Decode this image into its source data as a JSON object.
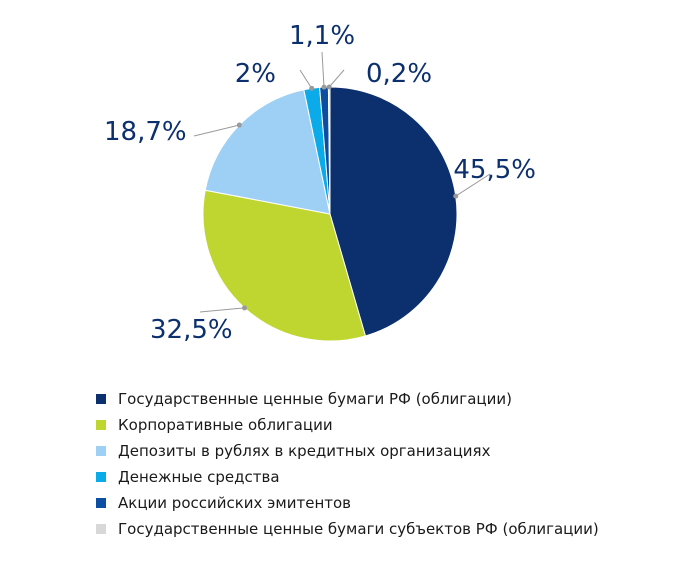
{
  "chart_data": {
    "type": "pie",
    "title": "",
    "slices": [
      {
        "name": "Государственные ценные бумаги РФ (облигации)",
        "value": 45.5,
        "label": "45,5%",
        "color": "#0c2f6e"
      },
      {
        "name": "Корпоративные облигации",
        "value": 32.5,
        "label": "32,5%",
        "color": "#bfd630"
      },
      {
        "name": "Депозиты в рублях в кредитных организациях",
        "value": 18.7,
        "label": "18,7%",
        "color": "#9dd0f4"
      },
      {
        "name": "Денежные средства",
        "value": 2,
        "label": "2%",
        "color": "#0aabe8"
      },
      {
        "name": "Акции российских эмитентов",
        "value": 1.1,
        "label": "1,1%",
        "color": "#0b4ea2"
      },
      {
        "name": "Государственные ценные бумаги субъектов РФ (облигации)",
        "value": 0.2,
        "label": "0,2%",
        "color": "#d8d8d8"
      }
    ],
    "label_color": "#0c2f6e",
    "leader_color": "#9a9a9a",
    "legend_position": "bottom"
  }
}
